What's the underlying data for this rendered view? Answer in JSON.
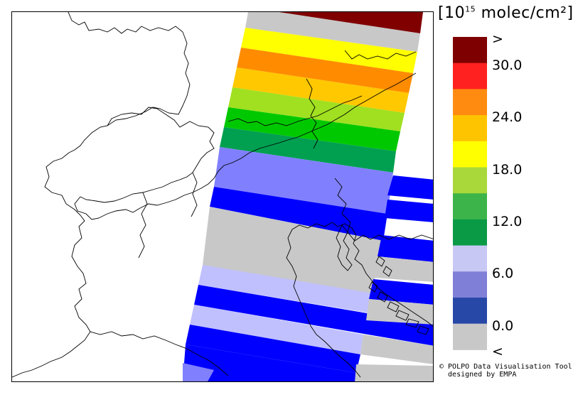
{
  "legend": {
    "unit_prefix": "[10",
    "unit_exponent": "15",
    "unit_suffix": " molec/cm²]",
    "classes": [
      {
        "label": ">",
        "color": "#7f0000"
      },
      {
        "label": "30.0",
        "color": "#ff2020"
      },
      {
        "label": "",
        "color": "#ff8c10"
      },
      {
        "label": "24.0",
        "color": "#ffc400"
      },
      {
        "label": "",
        "color": "#ffff00"
      },
      {
        "label": "18.0",
        "color": "#a8d83a"
      },
      {
        "label": "",
        "color": "#3cb44a"
      },
      {
        "label": "12.0",
        "color": "#0a9a46"
      },
      {
        "label": "",
        "color": "#c8c8f4"
      },
      {
        "label": "6.0",
        "color": "#7f7fd8"
      },
      {
        "label": "",
        "color": "#2848a8"
      },
      {
        "label": "0.0",
        "color": "#c8c8c8"
      },
      {
        "label": "<",
        "color": ""
      }
    ]
  },
  "swath_colors": {
    "darkred": "#800000",
    "gray": "#c8c8c8",
    "yellow": "#ffff00",
    "orange": "#ff8c00",
    "amber": "#ffc800",
    "lightgreen": "#a0e020",
    "green": "#3cc83c",
    "mediumgreen": "#00c800",
    "darkgreen": "#00a050",
    "periwinkle": "#8080ff",
    "blue": "#0000ff",
    "lavender": "#c0c0ff"
  },
  "credit": {
    "line1": "© POLPO Data Visualisation Tool",
    "line2": "  designed by EMPA"
  }
}
